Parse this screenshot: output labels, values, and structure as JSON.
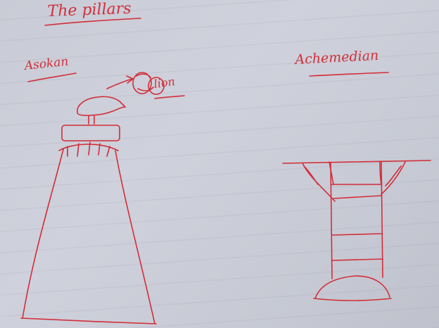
{
  "title": "The pillars",
  "labels": {
    "asokan": "Asokan",
    "achemedian": "Achemedian",
    "lion": "lion"
  },
  "colors": {
    "ink": "#d22d38",
    "paper": "#cacdd7"
  }
}
